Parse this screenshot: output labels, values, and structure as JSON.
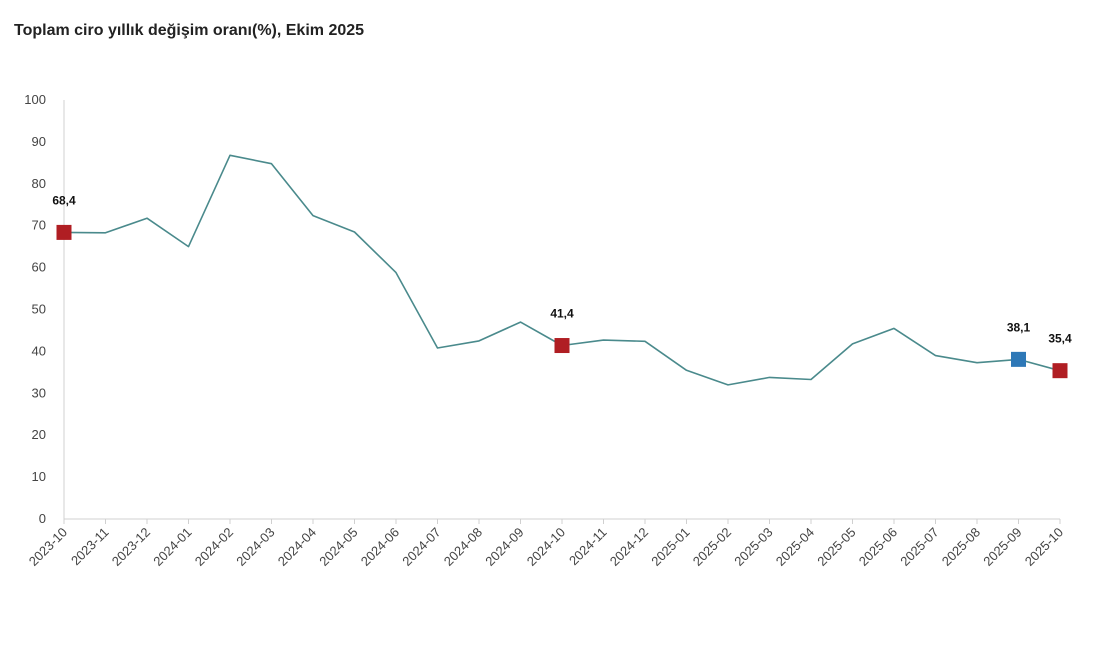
{
  "chart_data": {
    "type": "line",
    "title": "Toplam ciro yıllık değişim oranı(%), Ekim 2025",
    "xlabel": "",
    "ylabel": "",
    "ylim": [
      0,
      100
    ],
    "yticks": [
      0,
      10,
      20,
      30,
      40,
      50,
      60,
      70,
      80,
      90,
      100
    ],
    "grid": false,
    "categories": [
      "2023-10",
      "2023-11",
      "2023-12",
      "2024-01",
      "2024-02",
      "2024-03",
      "2024-04",
      "2024-05",
      "2024-06",
      "2024-07",
      "2024-08",
      "2024-09",
      "2024-10",
      "2024-11",
      "2024-12",
      "2025-01",
      "2025-02",
      "2025-03",
      "2025-04",
      "2025-05",
      "2025-06",
      "2025-07",
      "2025-08",
      "2025-09",
      "2025-10"
    ],
    "series": [
      {
        "name": "Toplam ciro yıllık değişim oranı",
        "color": "#4a8a8c",
        "values": [
          68.4,
          68.3,
          71.8,
          65.0,
          86.8,
          84.8,
          72.4,
          68.5,
          58.8,
          40.8,
          42.5,
          47.0,
          41.4,
          42.7,
          42.4,
          35.5,
          32.0,
          33.8,
          33.3,
          41.8,
          45.5,
          39.0,
          37.3,
          38.1,
          35.4
        ]
      }
    ],
    "highlights": [
      {
        "index": 0,
        "label": "68,4",
        "color": "#b01e23"
      },
      {
        "index": 12,
        "label": "41,4",
        "color": "#b01e23"
      },
      {
        "index": 23,
        "label": "38,1",
        "color": "#2e78b7"
      },
      {
        "index": 24,
        "label": "35,4",
        "color": "#b01e23"
      }
    ]
  }
}
